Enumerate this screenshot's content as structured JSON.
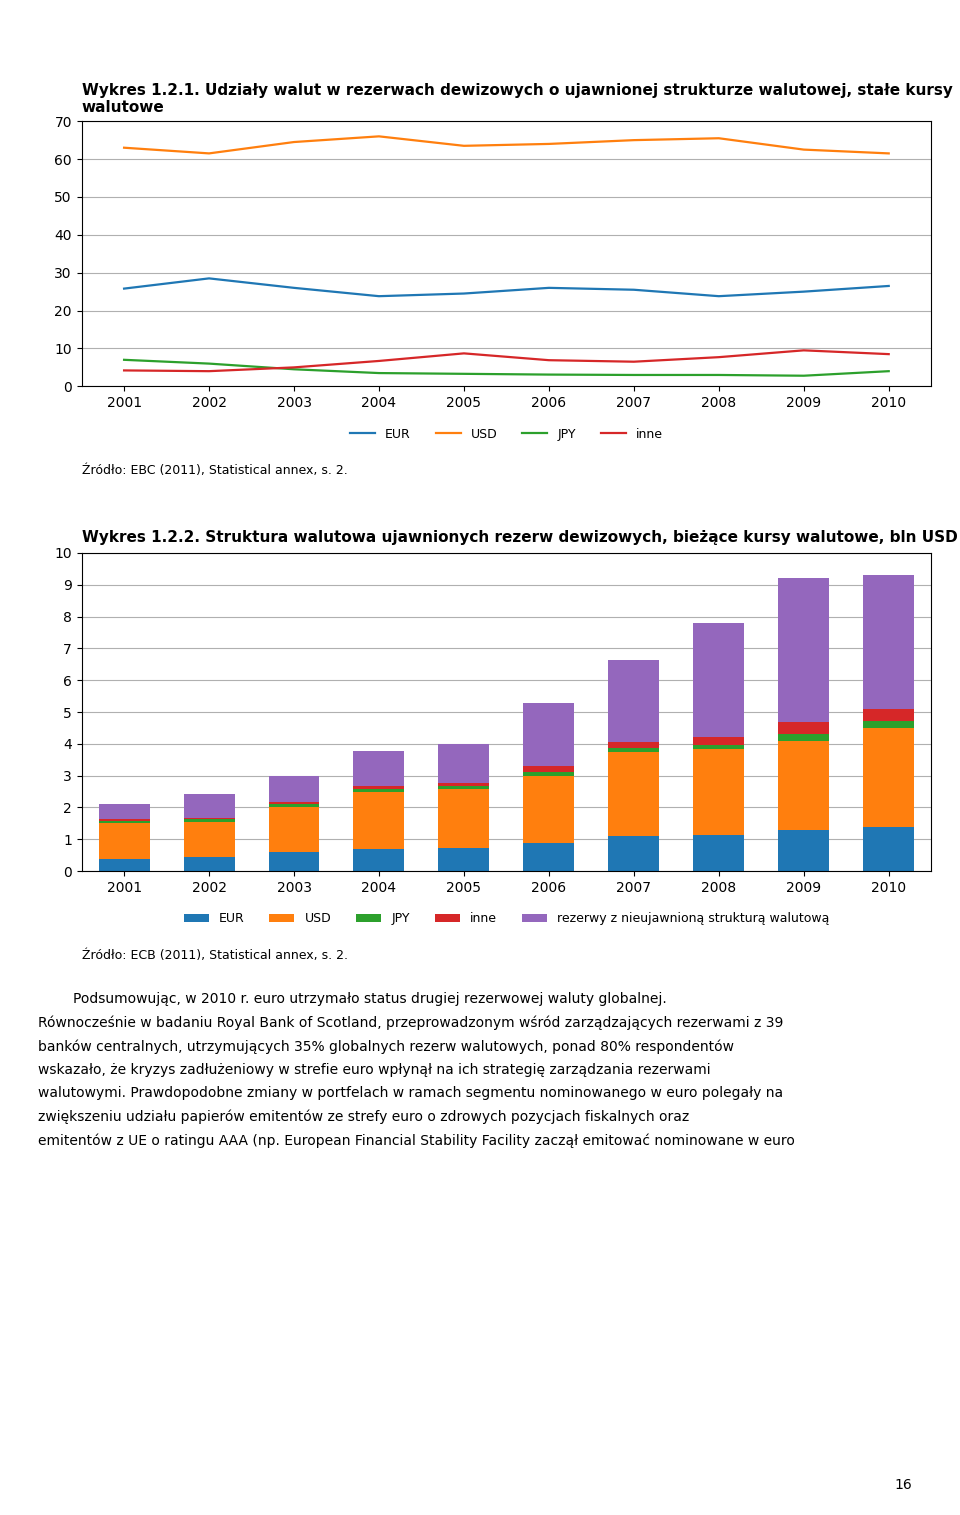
{
  "chart_data": [
    {
      "type": "line",
      "title": "Wykres 1.2.1. Udziały walut w rezerwach dewizowych o ujawnionej strukturze walutowej, stałe kursy walutowe",
      "x": [
        2001,
        2002,
        2003,
        2004,
        2005,
        2006,
        2007,
        2008,
        2009,
        2010
      ],
      "series": [
        {
          "name": "EUR",
          "values": [
            25.8,
            28.5,
            26.0,
            23.8,
            24.5,
            26.0,
            25.5,
            23.8,
            25.0,
            26.5
          ]
        },
        {
          "name": "USD",
          "values": [
            63.0,
            61.5,
            64.5,
            66.0,
            63.5,
            64.0,
            65.0,
            65.5,
            62.5,
            61.5
          ]
        },
        {
          "name": "JPY",
          "values": [
            7.0,
            6.0,
            4.5,
            3.5,
            3.3,
            3.1,
            3.0,
            3.0,
            2.8,
            4.0
          ]
        },
        {
          "name": "inne",
          "values": [
            4.2,
            4.0,
            5.0,
            6.7,
            8.7,
            6.9,
            6.5,
            7.7,
            9.5,
            8.5
          ]
        }
      ],
      "xlim": [
        2000.5,
        2010.5
      ],
      "xticks": [
        2001,
        2002,
        2003,
        2004,
        2005,
        2006,
        2007,
        2008,
        2009,
        2010
      ],
      "ylim": [
        0,
        70
      ],
      "yticks": [
        0,
        10,
        20,
        30,
        40,
        50,
        60,
        70
      ],
      "grid": true,
      "legend": "upper center",
      "annotations": [
        "Źródło: EBC (2011), Statistical annex, s. 2."
      ]
    },
    {
      "type": "bar",
      "title": "Wykres 1.2.2. Struktura walutowa ujawnionych rezerw dewizowych, bieżące kursy walutowe, bln USD",
      "stacked": true,
      "x": [
        2001,
        2002,
        2003,
        2004,
        2005,
        2006,
        2007,
        2008,
        2009,
        2010
      ],
      "series": [
        {
          "name": "EUR",
          "values": [
            0.38,
            0.45,
            0.6,
            0.68,
            0.72,
            0.88,
            1.1,
            1.13,
            1.3,
            1.38
          ]
        },
        {
          "name": "USD",
          "values": [
            1.12,
            1.1,
            1.4,
            1.8,
            1.85,
            2.12,
            2.65,
            2.7,
            2.8,
            3.12
          ]
        },
        {
          "name": "JPY",
          "values": [
            0.08,
            0.08,
            0.1,
            0.1,
            0.1,
            0.12,
            0.12,
            0.15,
            0.2,
            0.22
          ]
        },
        {
          "name": "inne",
          "values": [
            0.05,
            0.05,
            0.08,
            0.1,
            0.1,
            0.18,
            0.2,
            0.25,
            0.4,
            0.38
          ]
        },
        {
          "name": "rezerwy z nieujawnioną strukturą walutową",
          "values": [
            0.47,
            0.74,
            0.82,
            1.1,
            1.23,
            2.0,
            2.58,
            3.57,
            4.51,
            4.2
          ]
        }
      ],
      "xlim": [
        2000.5,
        2010.5
      ],
      "xticks": [
        2001,
        2002,
        2003,
        2004,
        2005,
        2006,
        2007,
        2008,
        2009,
        2010
      ],
      "ylim": [
        0,
        10
      ],
      "yticks": [
        0,
        1,
        2,
        3,
        4,
        5,
        6,
        7,
        8,
        9,
        10
      ],
      "grid": true,
      "legend": "upper center",
      "annotations": [
        "Źródło: ECB (2011), Statistical annex, s. 2."
      ]
    }
  ],
  "text": [
    "        Podsumowując, w 2010 r. euro utrzymało status drugiej rezerwowej waluty globalnej.",
    "Równocześnie w badaniu Royal Bank of Scotland, przeprowadzonym wśród zarządzających rezerwami z 39",
    "banków centralnych, utrzymujących 35% globalnych rezerw walutowych, ponad 80% respondentów",
    "wskazało, że kryzys zadłużeniowy w strefie euro wpłynął na ich strategię zarządzania rezerwami",
    "walutowymi. Prawdopodobne zmiany w portfelach w ramach segmentu nominowanego w euro polegały na",
    "zwiększeniu udziału papierów emitentów ze strefy euro o zdrowych pozycjach fiskalnych oraz",
    "emitentów z UE o ratingu AAA (np. European Financial Stability Facility zaczął emitować nominowane w euro"
  ],
  "page_number": "16"
}
